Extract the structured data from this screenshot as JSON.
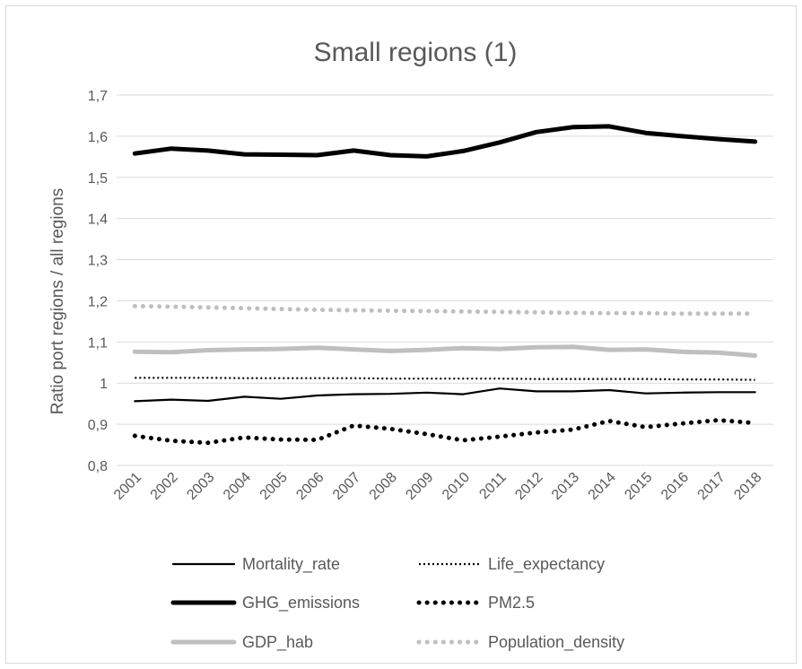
{
  "chart_data": {
    "type": "line",
    "title": "Small regions (1)",
    "xlabel": "",
    "ylabel": "Ratio port regions / all regions",
    "ylim": [
      0.8,
      1.7
    ],
    "y_ticks": [
      "0,8",
      "0,9",
      "1",
      "1,1",
      "1,2",
      "1,3",
      "1,4",
      "1,5",
      "1,6",
      "1,7"
    ],
    "y_tick_values": [
      0.8,
      0.9,
      1.0,
      1.1,
      1.2,
      1.3,
      1.4,
      1.5,
      1.6,
      1.7
    ],
    "categories": [
      "2001",
      "2002",
      "2003",
      "2004",
      "2005",
      "2006",
      "2007",
      "2008",
      "2009",
      "2010",
      "2011",
      "2012",
      "2013",
      "2014",
      "2015",
      "2016",
      "2017",
      "2018"
    ],
    "grid": true,
    "legend_position": "bottom",
    "series": [
      {
        "name": "Mortality_rate",
        "color": "#000000",
        "style": "solid-thin",
        "values": [
          0.956,
          0.96,
          0.957,
          0.967,
          0.962,
          0.97,
          0.973,
          0.974,
          0.977,
          0.973,
          0.987,
          0.98,
          0.98,
          0.983,
          0.975,
          0.977,
          0.978,
          0.978
        ]
      },
      {
        "name": "Life_expectancy",
        "color": "#000000",
        "style": "dotted-thin",
        "values": [
          1.013,
          1.013,
          1.013,
          1.012,
          1.012,
          1.012,
          1.012,
          1.011,
          1.011,
          1.011,
          1.011,
          1.01,
          1.01,
          1.01,
          1.01,
          1.009,
          1.009,
          1.008
        ]
      },
      {
        "name": "GHG_emissions",
        "color": "#000000",
        "style": "solid-thick",
        "values": [
          1.558,
          1.57,
          1.565,
          1.556,
          1.555,
          1.554,
          1.565,
          1.554,
          1.551,
          1.564,
          1.585,
          1.61,
          1.622,
          1.624,
          1.608,
          1.6,
          1.593,
          1.587
        ]
      },
      {
        "name": "PM2.5",
        "color": "#000000",
        "style": "dotted-thick",
        "values": [
          0.872,
          0.86,
          0.855,
          0.868,
          0.863,
          0.862,
          0.897,
          0.889,
          0.876,
          0.861,
          0.87,
          0.88,
          0.887,
          0.908,
          0.893,
          0.902,
          0.91,
          0.903
        ]
      },
      {
        "name": "GDP_hab",
        "color": "#bfbfbf",
        "style": "solid-thick",
        "values": [
          1.076,
          1.075,
          1.08,
          1.082,
          1.083,
          1.086,
          1.082,
          1.078,
          1.081,
          1.085,
          1.083,
          1.087,
          1.088,
          1.081,
          1.082,
          1.076,
          1.074,
          1.067
        ]
      },
      {
        "name": "Population_density",
        "color": "#bfbfbf",
        "style": "dotted-thick",
        "values": [
          1.187,
          1.186,
          1.184,
          1.182,
          1.18,
          1.178,
          1.177,
          1.176,
          1.175,
          1.174,
          1.173,
          1.172,
          1.171,
          1.17,
          1.17,
          1.169,
          1.169,
          1.169
        ]
      }
    ]
  }
}
